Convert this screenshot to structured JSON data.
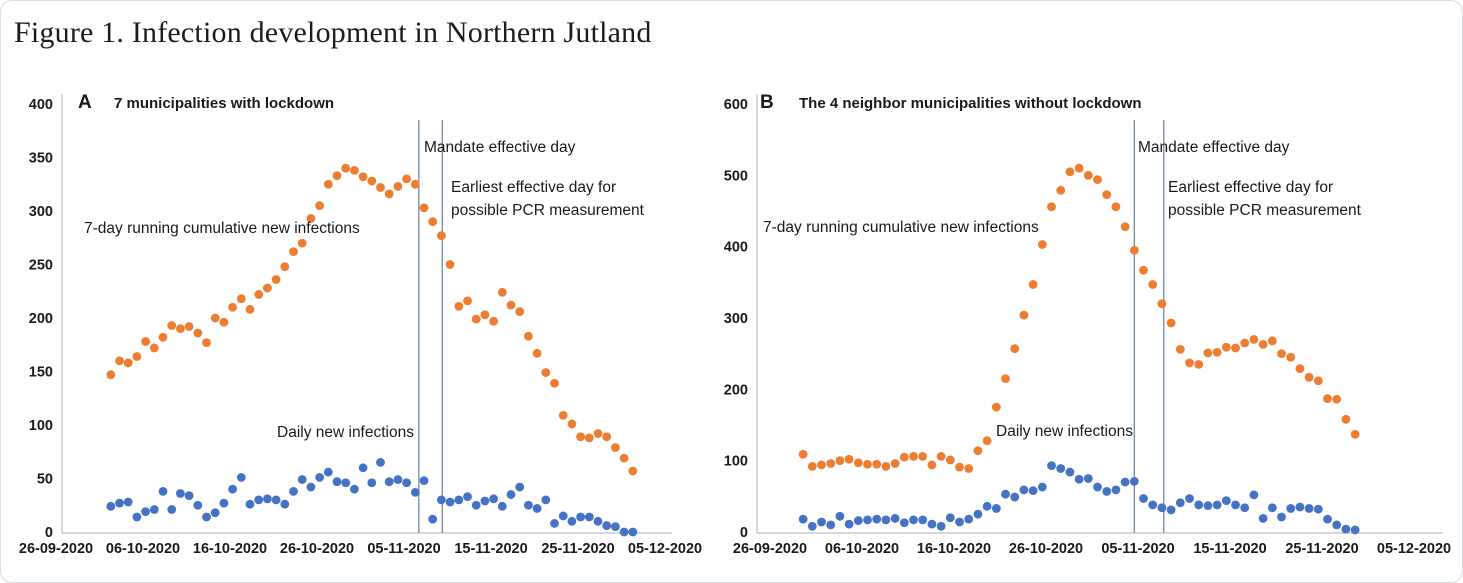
{
  "figure": {
    "title": "Figure 1. Infection development in Northern Jutland"
  },
  "colors": {
    "cumulative_series": "#ED7D31",
    "daily_series": "#4472C4",
    "event_line": "#7189A2",
    "axis_line": "#BFBFBF"
  },
  "panels": [
    {
      "label": "A",
      "title": "7 municipalities with lockdown",
      "annotations": {
        "cumulative": "7-day running cumulative new infections",
        "daily": "Daily new infections",
        "mandate": "Mandate effective day",
        "pcr": "Earliest effective day for\npossible PCR measurement"
      }
    },
    {
      "label": "B",
      "title": "The 4 neighbor municipalities without lockdown",
      "annotations": {
        "cumulative": "7-day running cumulative new infections",
        "daily": "Daily new infections",
        "mandate": "Mandate effective day",
        "pcr": "Earliest effective day for\npossible PCR measurement"
      }
    }
  ],
  "chart_data": [
    {
      "type": "scatter",
      "title": "7 municipalities with lockdown",
      "xlabel": "",
      "ylabel": "",
      "ylim": [
        0,
        400
      ],
      "y_ticks": [
        400,
        350,
        300,
        250,
        200,
        150,
        100,
        50,
        0
      ],
      "x_tick_labels": [
        "26-09-2020",
        "06-10-2020",
        "16-10-2020",
        "26-10-2020",
        "05-11-2020",
        "15-11-2020",
        "25-11-2020",
        "05-12-2020"
      ],
      "x_axis_note": "day offsets measured from 26-09-2020; data points are daily from ~02-10-2020 to ~01-12-2020",
      "grid": false,
      "legend": "none (in-plot text labels)",
      "event_lines": [
        {
          "label": "Mandate effective day",
          "day": 41.7
        },
        {
          "label": "Earliest effective day for possible PCR measurement",
          "day": 44.4
        }
      ],
      "series": [
        {
          "name": "7-day running cumulative new infections",
          "color": "#ED7D31",
          "values": [
            147,
            160,
            158,
            164,
            178,
            172,
            182,
            193,
            190,
            192,
            186,
            177,
            200,
            196,
            210,
            218,
            208,
            222,
            228,
            236,
            248,
            262,
            270,
            293,
            305,
            325,
            333,
            340,
            338,
            332,
            328,
            322,
            316,
            323,
            330,
            325,
            303,
            290,
            277,
            250,
            211,
            216,
            199,
            203,
            197,
            224,
            212,
            206,
            183,
            167,
            149,
            139,
            109,
            101,
            89,
            88,
            92,
            89,
            79,
            69,
            57
          ]
        },
        {
          "name": "Daily new infections",
          "color": "#4472C4",
          "values": [
            24,
            27,
            28,
            14,
            19,
            21,
            38,
            21,
            36,
            34,
            25,
            14,
            18,
            27,
            40,
            51,
            26,
            30,
            31,
            30,
            26,
            38,
            49,
            42,
            51,
            56,
            47,
            46,
            40,
            60,
            46,
            65,
            47,
            49,
            46,
            37,
            48,
            12,
            30,
            28,
            30,
            33,
            25,
            29,
            31,
            24,
            35,
            42,
            25,
            22,
            30,
            8,
            15,
            10,
            14,
            14,
            10,
            6,
            5,
            0,
            0
          ]
        }
      ]
    },
    {
      "type": "scatter",
      "title": "The 4 neighbor municipalities without lockdown",
      "xlabel": "",
      "ylabel": "",
      "ylim": [
        0,
        600
      ],
      "y_ticks": [
        600,
        500,
        400,
        300,
        200,
        100,
        0
      ],
      "x_tick_labels": [
        "26-09-2020",
        "06-10-2020",
        "16-10-2020",
        "26-10-2020",
        "05-11-2020",
        "15-11-2020",
        "25-11-2020",
        "05-12-2020"
      ],
      "x_axis_note": "day offsets measured from 26-09-2020; data points are daily from ~30-09-2020 to ~01-12-2020",
      "grid": false,
      "legend": "none (in-plot text labels)",
      "event_lines": [
        {
          "label": "Mandate effective day",
          "day": 39.6
        },
        {
          "label": "Earliest effective day for possible PCR measurement",
          "day": 42.8
        }
      ],
      "series": [
        {
          "name": "7-day running cumulative new infections",
          "color": "#ED7D31",
          "values": [
            109,
            92,
            94,
            96,
            100,
            102,
            97,
            95,
            95,
            92,
            96,
            105,
            106,
            106,
            94,
            106,
            101,
            91,
            89,
            114,
            128,
            175,
            215,
            257,
            304,
            347,
            403,
            456,
            479,
            505,
            510,
            500,
            494,
            473,
            456,
            428,
            395,
            367,
            347,
            320,
            293,
            256,
            237,
            235,
            251,
            252,
            259,
            258,
            265,
            270,
            263,
            268,
            250,
            245,
            229,
            217,
            212,
            187,
            186,
            158,
            137
          ]
        },
        {
          "name": "Daily new infections",
          "color": "#4472C4",
          "values": [
            18,
            8,
            14,
            10,
            22,
            11,
            16,
            17,
            18,
            17,
            19,
            13,
            17,
            17,
            11,
            8,
            20,
            14,
            18,
            25,
            36,
            33,
            53,
            49,
            59,
            58,
            63,
            93,
            89,
            84,
            74,
            75,
            63,
            57,
            59,
            70,
            71,
            47,
            38,
            34,
            31,
            41,
            47,
            38,
            37,
            38,
            44,
            38,
            34,
            52,
            19,
            34,
            21,
            33,
            35,
            33,
            32,
            18,
            10,
            4,
            3
          ]
        }
      ]
    }
  ]
}
